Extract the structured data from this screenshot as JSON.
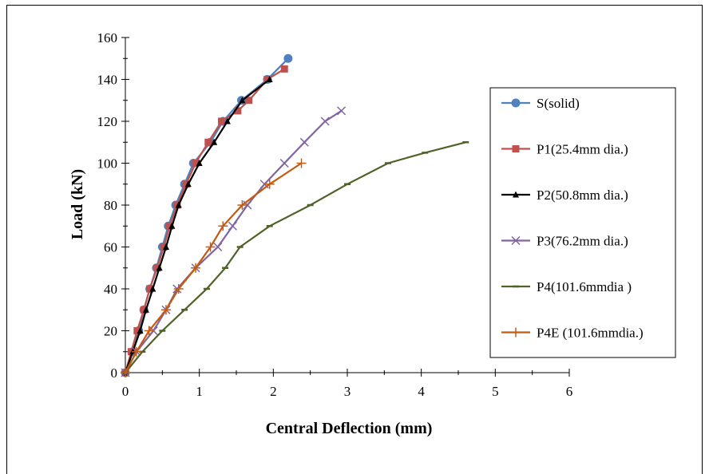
{
  "chart_data": {
    "type": "line",
    "xlabel": "Central Deflection (mm)",
    "ylabel": "Load (kN)",
    "xlim": [
      0,
      6
    ],
    "ylim": [
      0,
      160
    ],
    "x_ticks": [
      0,
      1,
      2,
      3,
      4,
      5,
      6
    ],
    "y_ticks": [
      0,
      20,
      40,
      60,
      80,
      100,
      120,
      140,
      160
    ],
    "grid": false,
    "legend_placement": "right",
    "series": [
      {
        "name": "S(solid)",
        "color": "#4f81bd",
        "marker": "circle",
        "points": [
          [
            0,
            0
          ],
          [
            0.1,
            10
          ],
          [
            0.18,
            20
          ],
          [
            0.25,
            30
          ],
          [
            0.33,
            40
          ],
          [
            0.42,
            50
          ],
          [
            0.5,
            60
          ],
          [
            0.58,
            70
          ],
          [
            0.68,
            80
          ],
          [
            0.8,
            90
          ],
          [
            0.92,
            100
          ],
          [
            1.15,
            110
          ],
          [
            1.32,
            120
          ],
          [
            1.57,
            130
          ],
          [
            1.92,
            140
          ],
          [
            2.2,
            150
          ]
        ]
      },
      {
        "name": "P1(25.4mm dia.)",
        "color": "#c0504d",
        "marker": "square",
        "points": [
          [
            0,
            0
          ],
          [
            0.08,
            10
          ],
          [
            0.16,
            20
          ],
          [
            0.25,
            30
          ],
          [
            0.33,
            40
          ],
          [
            0.43,
            50
          ],
          [
            0.52,
            60
          ],
          [
            0.6,
            70
          ],
          [
            0.7,
            80
          ],
          [
            0.82,
            90
          ],
          [
            0.95,
            100
          ],
          [
            1.12,
            110
          ],
          [
            1.3,
            120
          ],
          [
            1.52,
            125
          ],
          [
            1.67,
            130
          ],
          [
            1.92,
            140
          ],
          [
            2.15,
            145
          ]
        ]
      },
      {
        "name": "P2(50.8mm dia.)",
        "color": "#000000",
        "marker": "triangle",
        "points": [
          [
            0,
            0
          ],
          [
            0.1,
            10
          ],
          [
            0.2,
            20
          ],
          [
            0.28,
            30
          ],
          [
            0.37,
            40
          ],
          [
            0.46,
            50
          ],
          [
            0.55,
            60
          ],
          [
            0.63,
            70
          ],
          [
            0.72,
            80
          ],
          [
            0.85,
            90
          ],
          [
            1.0,
            100
          ],
          [
            1.2,
            110
          ],
          [
            1.38,
            120
          ],
          [
            1.58,
            130
          ],
          [
            1.95,
            140
          ]
        ]
      },
      {
        "name": "P3(76.2mm dia.)",
        "color": "#8064a2",
        "marker": "x",
        "points": [
          [
            0,
            0
          ],
          [
            0.15,
            10
          ],
          [
            0.38,
            20
          ],
          [
            0.55,
            30
          ],
          [
            0.7,
            40
          ],
          [
            0.95,
            50
          ],
          [
            1.25,
            60
          ],
          [
            1.45,
            70
          ],
          [
            1.65,
            80
          ],
          [
            1.88,
            90
          ],
          [
            2.15,
            100
          ],
          [
            2.42,
            110
          ],
          [
            2.7,
            120
          ],
          [
            2.92,
            125
          ]
        ]
      },
      {
        "name": "P4(101.6mmdia )",
        "color": "#4f6228",
        "marker": "dash",
        "points": [
          [
            0,
            0
          ],
          [
            0.23,
            10
          ],
          [
            0.5,
            20
          ],
          [
            0.8,
            30
          ],
          [
            1.1,
            40
          ],
          [
            1.35,
            50
          ],
          [
            1.55,
            60
          ],
          [
            1.95,
            70
          ],
          [
            2.5,
            80
          ],
          [
            3.0,
            90
          ],
          [
            3.55,
            100
          ],
          [
            4.05,
            105
          ],
          [
            4.6,
            110
          ]
        ]
      },
      {
        "name": "P4E (101.6mmdia.)",
        "color": "#c55a11",
        "marker": "plus",
        "points": [
          [
            0,
            0
          ],
          [
            0.15,
            10
          ],
          [
            0.32,
            20
          ],
          [
            0.55,
            30
          ],
          [
            0.72,
            40
          ],
          [
            0.95,
            50
          ],
          [
            1.15,
            60
          ],
          [
            1.32,
            70
          ],
          [
            1.58,
            80
          ],
          [
            1.95,
            90
          ],
          [
            2.38,
            100
          ]
        ]
      }
    ]
  }
}
